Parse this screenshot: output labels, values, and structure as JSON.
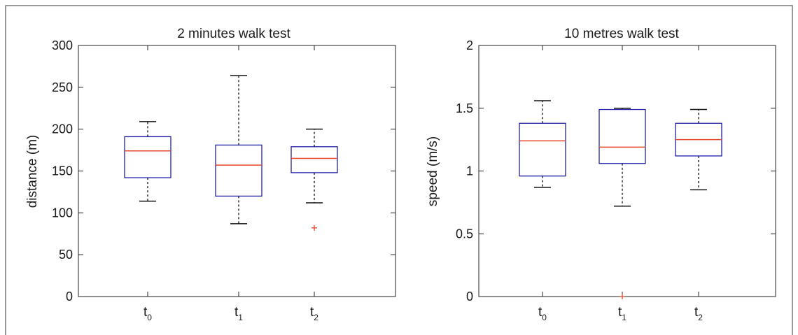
{
  "chart_data": [
    {
      "type": "box",
      "title": "2 minutes walk test",
      "ylabel": "distance (m)",
      "xlabel": "",
      "ylim": [
        0,
        300
      ],
      "yticks": [
        "0",
        "50",
        "100",
        "150",
        "200",
        "250",
        "300"
      ],
      "ytick_values": [
        0,
        50,
        100,
        150,
        200,
        250,
        300
      ],
      "categories": [
        {
          "base": "t",
          "sub": "0"
        },
        {
          "base": "t",
          "sub": "1"
        },
        {
          "base": "t",
          "sub": "2"
        }
      ],
      "boxes": [
        {
          "whisker_low": 114,
          "q1": 142,
          "median": 174,
          "q3": 191,
          "whisker_high": 209,
          "outliers": []
        },
        {
          "whisker_low": 87,
          "q1": 120,
          "median": 157,
          "q3": 181,
          "whisker_high": 264,
          "outliers": []
        },
        {
          "whisker_low": 112,
          "q1": 148,
          "median": 165,
          "q3": 179,
          "whisker_high": 200,
          "outliers": [
            82
          ]
        }
      ],
      "grid": false
    },
    {
      "type": "box",
      "title": "10 metres walk test",
      "ylabel": "speed (m/s)",
      "xlabel": "",
      "ylim": [
        0,
        2
      ],
      "yticks": [
        "0",
        "0.5",
        "1",
        "1.5",
        "2"
      ],
      "ytick_values": [
        0,
        0.5,
        1,
        1.5,
        2
      ],
      "categories": [
        {
          "base": "t",
          "sub": "0"
        },
        {
          "base": "t",
          "sub": "1"
        },
        {
          "base": "t",
          "sub": "2"
        }
      ],
      "boxes": [
        {
          "whisker_low": 0.87,
          "q1": 0.96,
          "median": 1.24,
          "q3": 1.38,
          "whisker_high": 1.56,
          "outliers": []
        },
        {
          "whisker_low": 0.72,
          "q1": 1.06,
          "median": 1.19,
          "q3": 1.49,
          "whisker_high": 1.5,
          "outliers": [
            0
          ]
        },
        {
          "whisker_low": 0.85,
          "q1": 1.12,
          "median": 1.25,
          "q3": 1.38,
          "whisker_high": 1.49,
          "outliers": []
        }
      ],
      "grid": false
    }
  ],
  "colors": {
    "box": "#1f1fa8",
    "median": "#e8452c",
    "whisker": "#111111",
    "outlier": "#e8452c",
    "axes": "#222222"
  }
}
